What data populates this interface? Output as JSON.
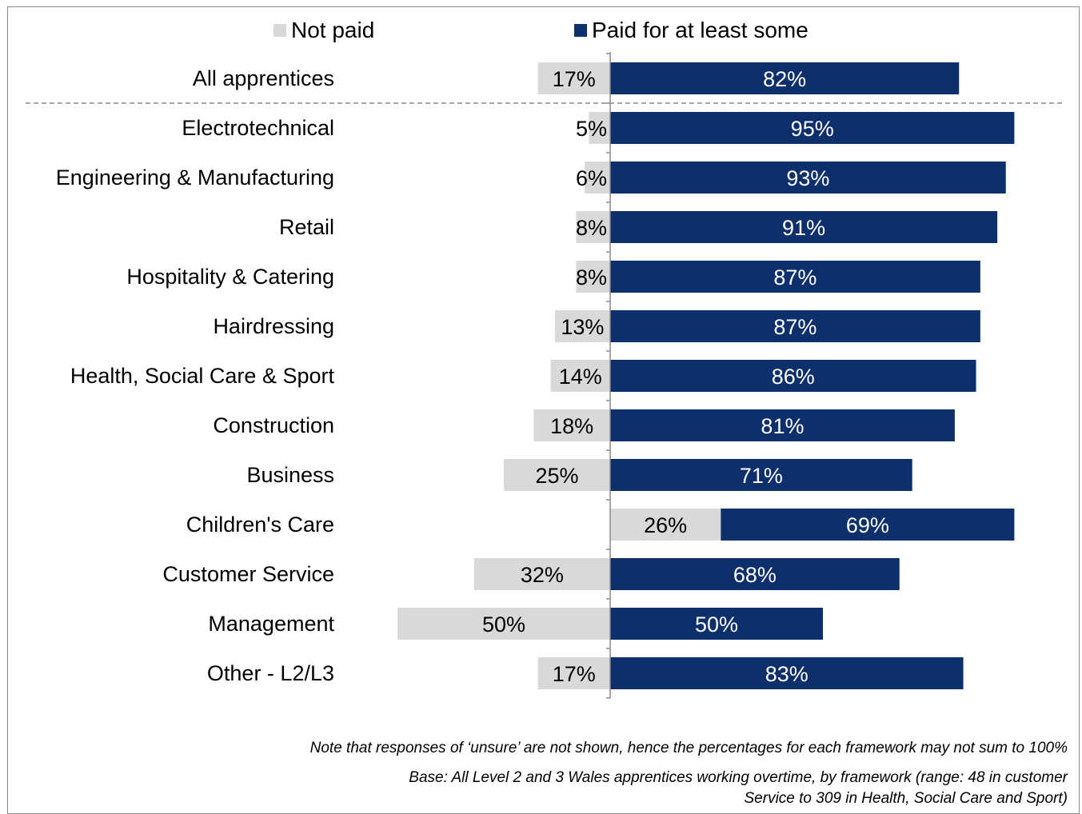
{
  "legend": {
    "not_paid": "Not paid",
    "paid": "Paid for at least some"
  },
  "colors": {
    "not_paid": "#d9d9d9",
    "paid": "#0d2f6b",
    "not_paid_text": "#000000",
    "paid_text": "#ffffff",
    "axis": "#8a8a8a",
    "separator": "#8a8a8a"
  },
  "chart_data": {
    "type": "bar",
    "orientation": "horizontal-diverging",
    "categories": [
      "All apprentices",
      "Electrotechnical",
      "Engineering & Manufacturing",
      "Retail",
      "Hospitality & Catering",
      "Hairdressing",
      "Health, Social Care & Sport",
      "Construction",
      "Business",
      "Children's Care",
      "Customer Service",
      "Management",
      "Other - L2/L3"
    ],
    "series": [
      {
        "name": "Not paid",
        "values": [
          17,
          5,
          6,
          8,
          8,
          13,
          14,
          18,
          25,
          26,
          32,
          50,
          17
        ],
        "labels": [
          "17%",
          "5%",
          "6%",
          "8%",
          "8%",
          "13%",
          "14%",
          "18%",
          "25%",
          "26%",
          "32%",
          "50%",
          "17%"
        ]
      },
      {
        "name": "Paid for at least some",
        "values": [
          82,
          95,
          93,
          91,
          87,
          87,
          86,
          81,
          71,
          69,
          68,
          50,
          83
        ],
        "labels": [
          "82%",
          "95%",
          "93%",
          "91%",
          "87%",
          "87%",
          "86%",
          "81%",
          "71%",
          "69%",
          "68%",
          "50%",
          "83%"
        ]
      }
    ],
    "separator_after_index": 0,
    "legend_position": "top",
    "grid": false
  },
  "notes": {
    "unsure": "Note that responses of ‘unsure’ are not shown, hence the percentages for each framework may not sum to 100%",
    "base_line1": "Base: All Level 2 and 3 Wales apprentices working overtime, by framework (range: 48 in customer",
    "base_line2": "Service to 309 in Health, Social Care and Sport)"
  }
}
